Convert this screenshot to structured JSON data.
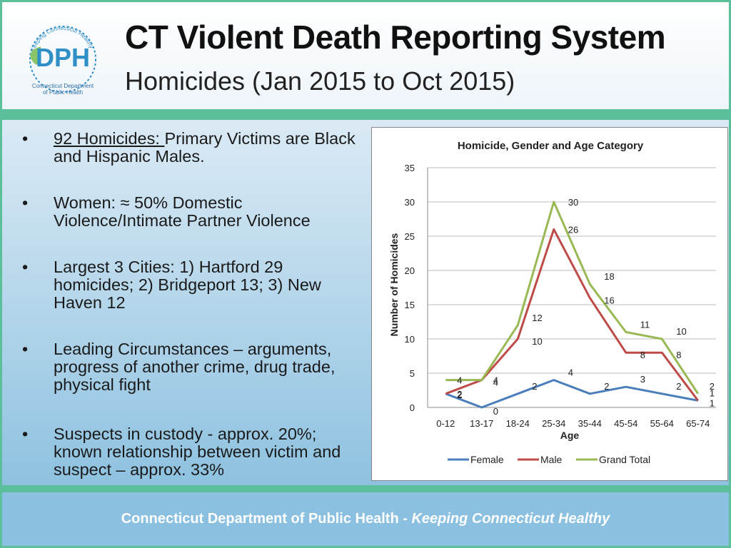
{
  "header": {
    "title": "CT Violent Death Reporting System",
    "subtitle": "Homicides (Jan 2015 to Oct 2015)",
    "logo": {
      "arc_text": "Keeping Connecticut Healthy",
      "letters": "DPH",
      "caption_line1": "Connecticut Department",
      "caption_line2": "of Public Health"
    }
  },
  "bullets": [
    {
      "marker": "•",
      "lead": "92 Homicides: ",
      "text": "Primary Victims are Black and Hispanic Males."
    },
    {
      "marker": "•",
      "lead": "",
      "text": "Women: ≈ 50% Domestic Violence/Intimate Partner Violence"
    },
    {
      "marker": "•",
      "lead": "",
      "text": "Largest 3 Cities:  1) Hartford 29 homicides; 2) Bridgeport 13; 3) New Haven 12"
    },
    {
      "marker": "•",
      "lead": "",
      "text": "Leading Circumstances – arguments, progress of another crime, drug trade, physical fight"
    },
    {
      "marker": "•",
      "lead": "",
      "text": "Suspects in custody - approx. 20%; known relationship between victim and suspect – approx. 33%"
    }
  ],
  "footer": {
    "text_bold": "Connecticut Department of Public Health  - ",
    "text_italic": "Keeping Connecticut Healthy"
  },
  "chart_data": {
    "type": "line",
    "title": "Homicide, Gender and Age Category",
    "xlabel": "Age",
    "ylabel": "Number of Homicides",
    "categories": [
      "0-12",
      "13-17",
      "18-24",
      "25-34",
      "35-44",
      "45-54",
      "55-64",
      "65-74"
    ],
    "ylim": [
      0,
      35
    ],
    "yticks": [
      0,
      5,
      10,
      15,
      20,
      25,
      30,
      35
    ],
    "grid": true,
    "legend_position": "bottom",
    "series": [
      {
        "name": "Female",
        "color": "#4a7ebb",
        "values": [
          2,
          0,
          2,
          4,
          2,
          3,
          2,
          1
        ],
        "labels": [
          "2",
          "0",
          "2",
          "4",
          "2",
          "3",
          "2",
          "1"
        ]
      },
      {
        "name": "Male",
        "color": "#be4b48",
        "values": [
          2,
          4,
          10,
          26,
          16,
          8,
          8,
          1
        ],
        "labels": [
          "2",
          "4",
          "10",
          "26",
          "16",
          "8",
          "8",
          "1"
        ]
      },
      {
        "name": "Grand Total",
        "color": "#98b954",
        "values": [
          4,
          4,
          12,
          30,
          18,
          11,
          10,
          2
        ],
        "labels": [
          "4",
          "4",
          "12",
          "30",
          "18",
          "11",
          "10",
          "2"
        ]
      }
    ]
  }
}
